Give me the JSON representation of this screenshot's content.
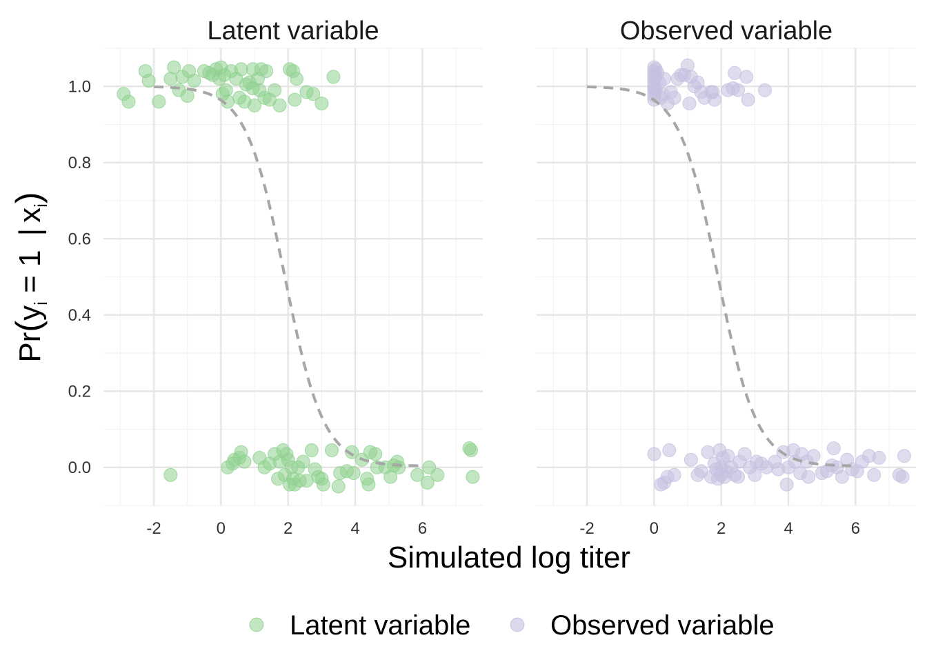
{
  "chart_data": {
    "type": "scatter",
    "xlabel": "Simulated log titer",
    "ylabel": {
      "prefix": "Pr",
      "y": "y",
      "sub": "i",
      "eq": " = 1 ",
      "bar": "|",
      "x": "x",
      "sub2": "i"
    },
    "xlim": [
      -3.5,
      7.8
    ],
    "ylim": [
      -0.1,
      1.1
    ],
    "x_ticks": [
      -2,
      0,
      2,
      4,
      6
    ],
    "x_tick_labels": [
      "-2",
      "0",
      "2",
      "4",
      "6"
    ],
    "y_ticks": [
      0,
      0.2,
      0.4,
      0.6,
      0.8,
      1
    ],
    "y_tick_labels": [
      "0.0",
      "0.2",
      "0.4",
      "0.6",
      "0.8",
      "1.0"
    ],
    "legend": [
      {
        "label": "Latent variable",
        "color": "#8fd18f"
      },
      {
        "label": "Observed variable",
        "color": "#c7bfe0"
      }
    ],
    "curve": {
      "style": "dashed",
      "color": "#a6a6a6",
      "x_from": -2,
      "x_to": 6,
      "logistic": {
        "midpoint": 1.9,
        "scale": 0.58,
        "offset": 0.003
      }
    },
    "panels": [
      {
        "title": "Latent variable",
        "color": "#8fd18f",
        "points": [
          [
            -2.9,
            0.98
          ],
          [
            -2.75,
            0.96
          ],
          [
            -2.25,
            1.04
          ],
          [
            -2.15,
            1.015
          ],
          [
            -1.85,
            0.96
          ],
          [
            -1.5,
            1.02
          ],
          [
            -1.4,
            1.05
          ],
          [
            -1.25,
            0.99
          ],
          [
            -1.15,
            1.025
          ],
          [
            -1.0,
            0.975
          ],
          [
            -0.95,
            1.04
          ],
          [
            -0.8,
            1.015
          ],
          [
            -0.5,
            1.04
          ],
          [
            -0.35,
            1.035
          ],
          [
            -0.25,
            1.03
          ],
          [
            -0.15,
            1.045
          ],
          [
            -0.05,
            1.02
          ],
          [
            0.0,
            1.05
          ],
          [
            0.05,
            0.98
          ],
          [
            0.1,
            1.03
          ],
          [
            0.15,
            0.99
          ],
          [
            0.2,
            0.96
          ],
          [
            0.3,
            1.04
          ],
          [
            0.45,
            1.02
          ],
          [
            0.55,
            0.97
          ],
          [
            0.6,
            1.045
          ],
          [
            0.7,
            0.96
          ],
          [
            0.75,
            1.005
          ],
          [
            0.85,
            1.01
          ],
          [
            0.95,
            1.045
          ],
          [
            0.95,
            0.995
          ],
          [
            1.0,
            0.95
          ],
          [
            1.1,
            1.02
          ],
          [
            1.15,
            0.99
          ],
          [
            1.2,
            1.045
          ],
          [
            1.3,
            0.97
          ],
          [
            1.35,
            1.04
          ],
          [
            1.45,
            0.965
          ],
          [
            1.6,
            0.99
          ],
          [
            1.75,
            0.95
          ],
          [
            2.05,
            1.045
          ],
          [
            2.15,
            1.04
          ],
          [
            2.2,
            0.965
          ],
          [
            2.25,
            1.02
          ],
          [
            2.55,
            0.985
          ],
          [
            2.75,
            0.98
          ],
          [
            3.0,
            0.955
          ],
          [
            3.35,
            1.025
          ],
          [
            -1.5,
            -0.02
          ],
          [
            0.2,
            0.0
          ],
          [
            0.35,
            0.01
          ],
          [
            0.4,
            0.02
          ],
          [
            0.55,
            0.025
          ],
          [
            0.6,
            0.04
          ],
          [
            0.7,
            0.015
          ],
          [
            1.15,
            0.025
          ],
          [
            1.3,
            0.0
          ],
          [
            1.45,
            0.01
          ],
          [
            1.6,
            0.035
          ],
          [
            1.7,
            -0.03
          ],
          [
            1.75,
            0.015
          ],
          [
            1.85,
            0.045
          ],
          [
            1.9,
            -0.02
          ],
          [
            1.95,
            0.035
          ],
          [
            2.0,
            0.02
          ],
          [
            2.05,
            -0.045
          ],
          [
            2.1,
            0.0
          ],
          [
            2.15,
            -0.03
          ],
          [
            2.2,
            -0.045
          ],
          [
            2.3,
            0.0
          ],
          [
            2.35,
            -0.035
          ],
          [
            2.45,
            0.015
          ],
          [
            2.55,
            -0.035
          ],
          [
            2.7,
            0.045
          ],
          [
            2.8,
            -0.005
          ],
          [
            2.9,
            -0.025
          ],
          [
            3.0,
            -0.03
          ],
          [
            3.05,
            -0.045
          ],
          [
            3.3,
            0.045
          ],
          [
            3.5,
            -0.05
          ],
          [
            3.55,
            -0.015
          ],
          [
            3.75,
            -0.01
          ],
          [
            3.9,
            0.04
          ],
          [
            3.95,
            -0.015
          ],
          [
            4.2,
            0.02
          ],
          [
            4.35,
            -0.03
          ],
          [
            4.4,
            -0.045
          ],
          [
            4.45,
            0.04
          ],
          [
            4.6,
            0.035
          ],
          [
            4.65,
            0.0
          ],
          [
            4.9,
            0.0
          ],
          [
            5.05,
            -0.025
          ],
          [
            5.15,
            0.005
          ],
          [
            5.25,
            0.015
          ],
          [
            5.3,
            0.0
          ],
          [
            5.85,
            -0.02
          ],
          [
            6.15,
            -0.04
          ],
          [
            6.2,
            0.0
          ],
          [
            6.45,
            -0.02
          ],
          [
            7.4,
            0.05
          ],
          [
            7.45,
            0.045
          ],
          [
            7.5,
            -0.025
          ]
        ]
      },
      {
        "title": "Observed variable",
        "color": "#c7bfe0",
        "points": [
          [
            0.0,
            1.05
          ],
          [
            0.0,
            1.04
          ],
          [
            0.0,
            1.03
          ],
          [
            0.0,
            1.02
          ],
          [
            0.0,
            1.01
          ],
          [
            0.0,
            1.0
          ],
          [
            0.0,
            0.995
          ],
          [
            0.0,
            0.985
          ],
          [
            0.0,
            0.975
          ],
          [
            0.0,
            0.965
          ],
          [
            0.05,
            1.045
          ],
          [
            0.05,
            1.025
          ],
          [
            0.05,
            0.99
          ],
          [
            0.1,
            1.035
          ],
          [
            0.15,
            1.01
          ],
          [
            0.2,
            0.97
          ],
          [
            0.25,
            0.98
          ],
          [
            0.3,
            1.02
          ],
          [
            0.4,
            0.955
          ],
          [
            0.5,
            0.985
          ],
          [
            0.6,
            0.97
          ],
          [
            0.7,
            1.02
          ],
          [
            0.8,
            1.03
          ],
          [
            0.9,
            1.03
          ],
          [
            1.0,
            1.055
          ],
          [
            1.05,
            0.955
          ],
          [
            1.1,
            1.025
          ],
          [
            1.2,
            1.0
          ],
          [
            1.3,
            1.01
          ],
          [
            1.4,
            0.985
          ],
          [
            1.5,
            0.97
          ],
          [
            1.7,
            0.985
          ],
          [
            1.75,
            0.985
          ],
          [
            1.8,
            0.965
          ],
          [
            2.2,
            0.99
          ],
          [
            2.35,
            0.995
          ],
          [
            2.4,
            1.035
          ],
          [
            2.5,
            0.99
          ],
          [
            2.75,
            1.025
          ],
          [
            2.8,
            0.965
          ],
          [
            3.3,
            0.99
          ],
          [
            0.0,
            0.035
          ],
          [
            0.2,
            -0.045
          ],
          [
            0.3,
            -0.04
          ],
          [
            0.4,
            -0.025
          ],
          [
            0.45,
            0.045
          ],
          [
            0.6,
            -0.02
          ],
          [
            1.1,
            0.02
          ],
          [
            1.3,
            -0.02
          ],
          [
            1.4,
            -0.01
          ],
          [
            1.6,
            0.04
          ],
          [
            1.7,
            -0.025
          ],
          [
            1.8,
            0.01
          ],
          [
            1.85,
            -0.005
          ],
          [
            1.9,
            -0.03
          ],
          [
            1.95,
            0.045
          ],
          [
            2.0,
            0.0
          ],
          [
            2.0,
            -0.02
          ],
          [
            2.05,
            0.025
          ],
          [
            2.1,
            -0.025
          ],
          [
            2.15,
            -0.01
          ],
          [
            2.2,
            0.03
          ],
          [
            2.3,
            0.0
          ],
          [
            2.4,
            -0.02
          ],
          [
            2.5,
            -0.025
          ],
          [
            2.55,
            0.015
          ],
          [
            2.7,
            0.035
          ],
          [
            2.85,
            0.0
          ],
          [
            3.0,
            -0.02
          ],
          [
            3.05,
            0.015
          ],
          [
            3.2,
            0.01
          ],
          [
            3.35,
            0.0
          ],
          [
            3.6,
            0.015
          ],
          [
            3.7,
            -0.005
          ],
          [
            3.85,
            0.04
          ],
          [
            3.95,
            -0.045
          ],
          [
            4.0,
            0.0
          ],
          [
            4.15,
            0.045
          ],
          [
            4.2,
            0.015
          ],
          [
            4.35,
            -0.015
          ],
          [
            4.4,
            0.035
          ],
          [
            4.55,
            0.015
          ],
          [
            4.6,
            -0.025
          ],
          [
            4.75,
            0.03
          ],
          [
            5.0,
            -0.015
          ],
          [
            5.15,
            -0.01
          ],
          [
            5.3,
            0.005
          ],
          [
            5.35,
            0.05
          ],
          [
            5.45,
            0.0
          ],
          [
            5.6,
            -0.025
          ],
          [
            5.75,
            0.02
          ],
          [
            5.9,
            -0.005
          ],
          [
            6.05,
            -0.01
          ],
          [
            6.2,
            0.015
          ],
          [
            6.4,
            0.03
          ],
          [
            6.55,
            -0.02
          ],
          [
            6.7,
            0.025
          ],
          [
            7.3,
            -0.02
          ],
          [
            7.4,
            -0.025
          ],
          [
            7.45,
            0.03
          ]
        ]
      }
    ]
  }
}
